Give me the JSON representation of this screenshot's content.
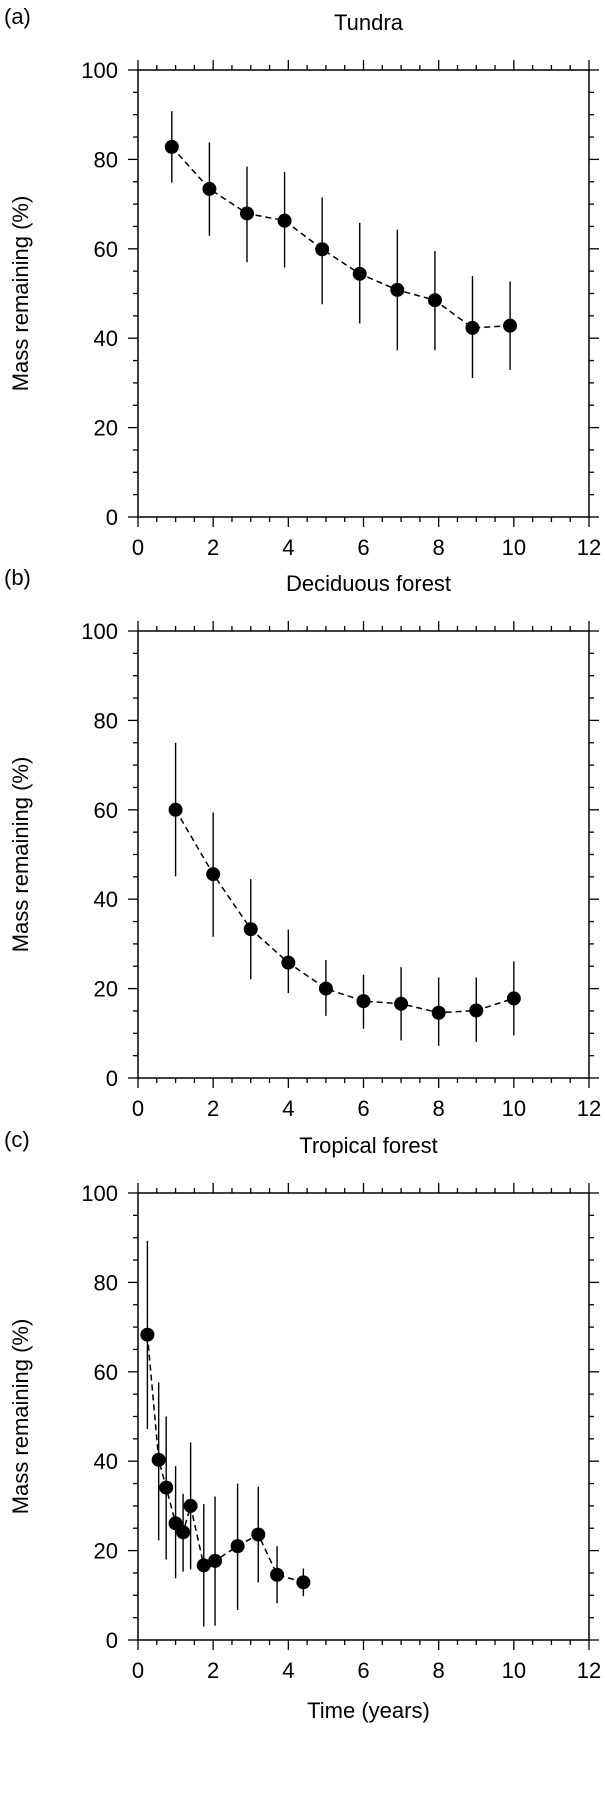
{
  "figure": {
    "xlabel": "Time (years)"
  },
  "chart_data": [
    {
      "type": "scatter",
      "panel_letter": "(a)",
      "title": "Tundra",
      "xlabel": "",
      "ylabel": "Mass remaining (%)",
      "xlim": [
        0,
        12
      ],
      "ylim": [
        0,
        100
      ],
      "xticks": [
        0,
        2,
        4,
        6,
        8,
        10,
        12
      ],
      "yticks": [
        0,
        20,
        40,
        60,
        80,
        100
      ],
      "grid": false,
      "line_style": "dashed",
      "points": [
        {
          "x": 0.9,
          "y": 82.8,
          "err_low": 74.8,
          "err_high": 90.8
        },
        {
          "x": 1.9,
          "y": 73.4,
          "err_low": 62.9,
          "err_high": 83.8
        },
        {
          "x": 2.9,
          "y": 67.9,
          "err_low": 57.0,
          "err_high": 78.4
        },
        {
          "x": 3.9,
          "y": 66.3,
          "err_low": 55.8,
          "err_high": 77.2
        },
        {
          "x": 4.9,
          "y": 59.9,
          "err_low": 47.6,
          "err_high": 71.5
        },
        {
          "x": 5.9,
          "y": 54.4,
          "err_low": 43.3,
          "err_high": 65.8
        },
        {
          "x": 6.9,
          "y": 50.8,
          "err_low": 37.3,
          "err_high": 64.3
        },
        {
          "x": 7.9,
          "y": 48.5,
          "err_low": 37.3,
          "err_high": 59.5
        },
        {
          "x": 8.9,
          "y": 42.3,
          "err_low": 31.1,
          "err_high": 53.9
        },
        {
          "x": 9.9,
          "y": 42.8,
          "err_low": 32.9,
          "err_high": 52.7
        }
      ]
    },
    {
      "type": "scatter",
      "panel_letter": "(b)",
      "title": "Deciduous forest",
      "xlabel": "",
      "ylabel": "Mass remaining (%)",
      "xlim": [
        0,
        12
      ],
      "ylim": [
        0,
        100
      ],
      "xticks": [
        0,
        2,
        4,
        6,
        8,
        10,
        12
      ],
      "yticks": [
        0,
        20,
        40,
        60,
        80,
        100
      ],
      "grid": false,
      "line_style": "dashed",
      "points": [
        {
          "x": 1.0,
          "y": 60.0,
          "err_low": 45.1,
          "err_high": 75.0
        },
        {
          "x": 2.0,
          "y": 45.6,
          "err_low": 31.6,
          "err_high": 59.4
        },
        {
          "x": 3.0,
          "y": 33.3,
          "err_low": 22.1,
          "err_high": 44.5
        },
        {
          "x": 4.0,
          "y": 25.8,
          "err_low": 19.0,
          "err_high": 33.2
        },
        {
          "x": 5.0,
          "y": 20.0,
          "err_low": 13.9,
          "err_high": 26.4
        },
        {
          "x": 6.0,
          "y": 17.2,
          "err_low": 11.0,
          "err_high": 23.1
        },
        {
          "x": 7.0,
          "y": 16.6,
          "err_low": 8.4,
          "err_high": 24.8
        },
        {
          "x": 8.0,
          "y": 14.6,
          "err_low": 7.2,
          "err_high": 22.5
        },
        {
          "x": 9.0,
          "y": 15.1,
          "err_low": 8.1,
          "err_high": 22.5
        },
        {
          "x": 10.0,
          "y": 17.8,
          "err_low": 9.5,
          "err_high": 26.1
        }
      ]
    },
    {
      "type": "scatter",
      "panel_letter": "(c)",
      "title": "Tropical forest",
      "xlabel": "Time (years)",
      "ylabel": "Mass remaining (%)",
      "xlim": [
        0,
        12
      ],
      "ylim": [
        0,
        100
      ],
      "xticks": [
        0,
        2,
        4,
        6,
        8,
        10,
        12
      ],
      "yticks": [
        0,
        20,
        40,
        60,
        80,
        100
      ],
      "grid": false,
      "line_style": "dashed",
      "points": [
        {
          "x": 0.25,
          "y": 68.3,
          "err_low": 47.2,
          "err_high": 89.3
        },
        {
          "x": 0.55,
          "y": 40.3,
          "err_low": 22.3,
          "err_high": 57.6
        },
        {
          "x": 0.75,
          "y": 34.1,
          "err_low": 18.0,
          "err_high": 50.0
        },
        {
          "x": 1.0,
          "y": 26.1,
          "err_low": 13.8,
          "err_high": 38.9
        },
        {
          "x": 1.2,
          "y": 24.1,
          "err_low": 15.3,
          "err_high": 32.7
        },
        {
          "x": 1.4,
          "y": 30.0,
          "err_low": 15.8,
          "err_high": 44.2
        },
        {
          "x": 1.75,
          "y": 16.7,
          "err_low": 3.0,
          "err_high": 30.4
        },
        {
          "x": 2.05,
          "y": 17.7,
          "err_low": 3.2,
          "err_high": 32.1
        },
        {
          "x": 2.65,
          "y": 21.0,
          "err_low": 6.7,
          "err_high": 35.0
        },
        {
          "x": 3.2,
          "y": 23.6,
          "err_low": 12.9,
          "err_high": 34.3
        },
        {
          "x": 3.7,
          "y": 14.6,
          "err_low": 8.2,
          "err_high": 21.0
        },
        {
          "x": 4.4,
          "y": 12.9,
          "err_low": 9.8,
          "err_high": 16.0
        }
      ]
    }
  ]
}
